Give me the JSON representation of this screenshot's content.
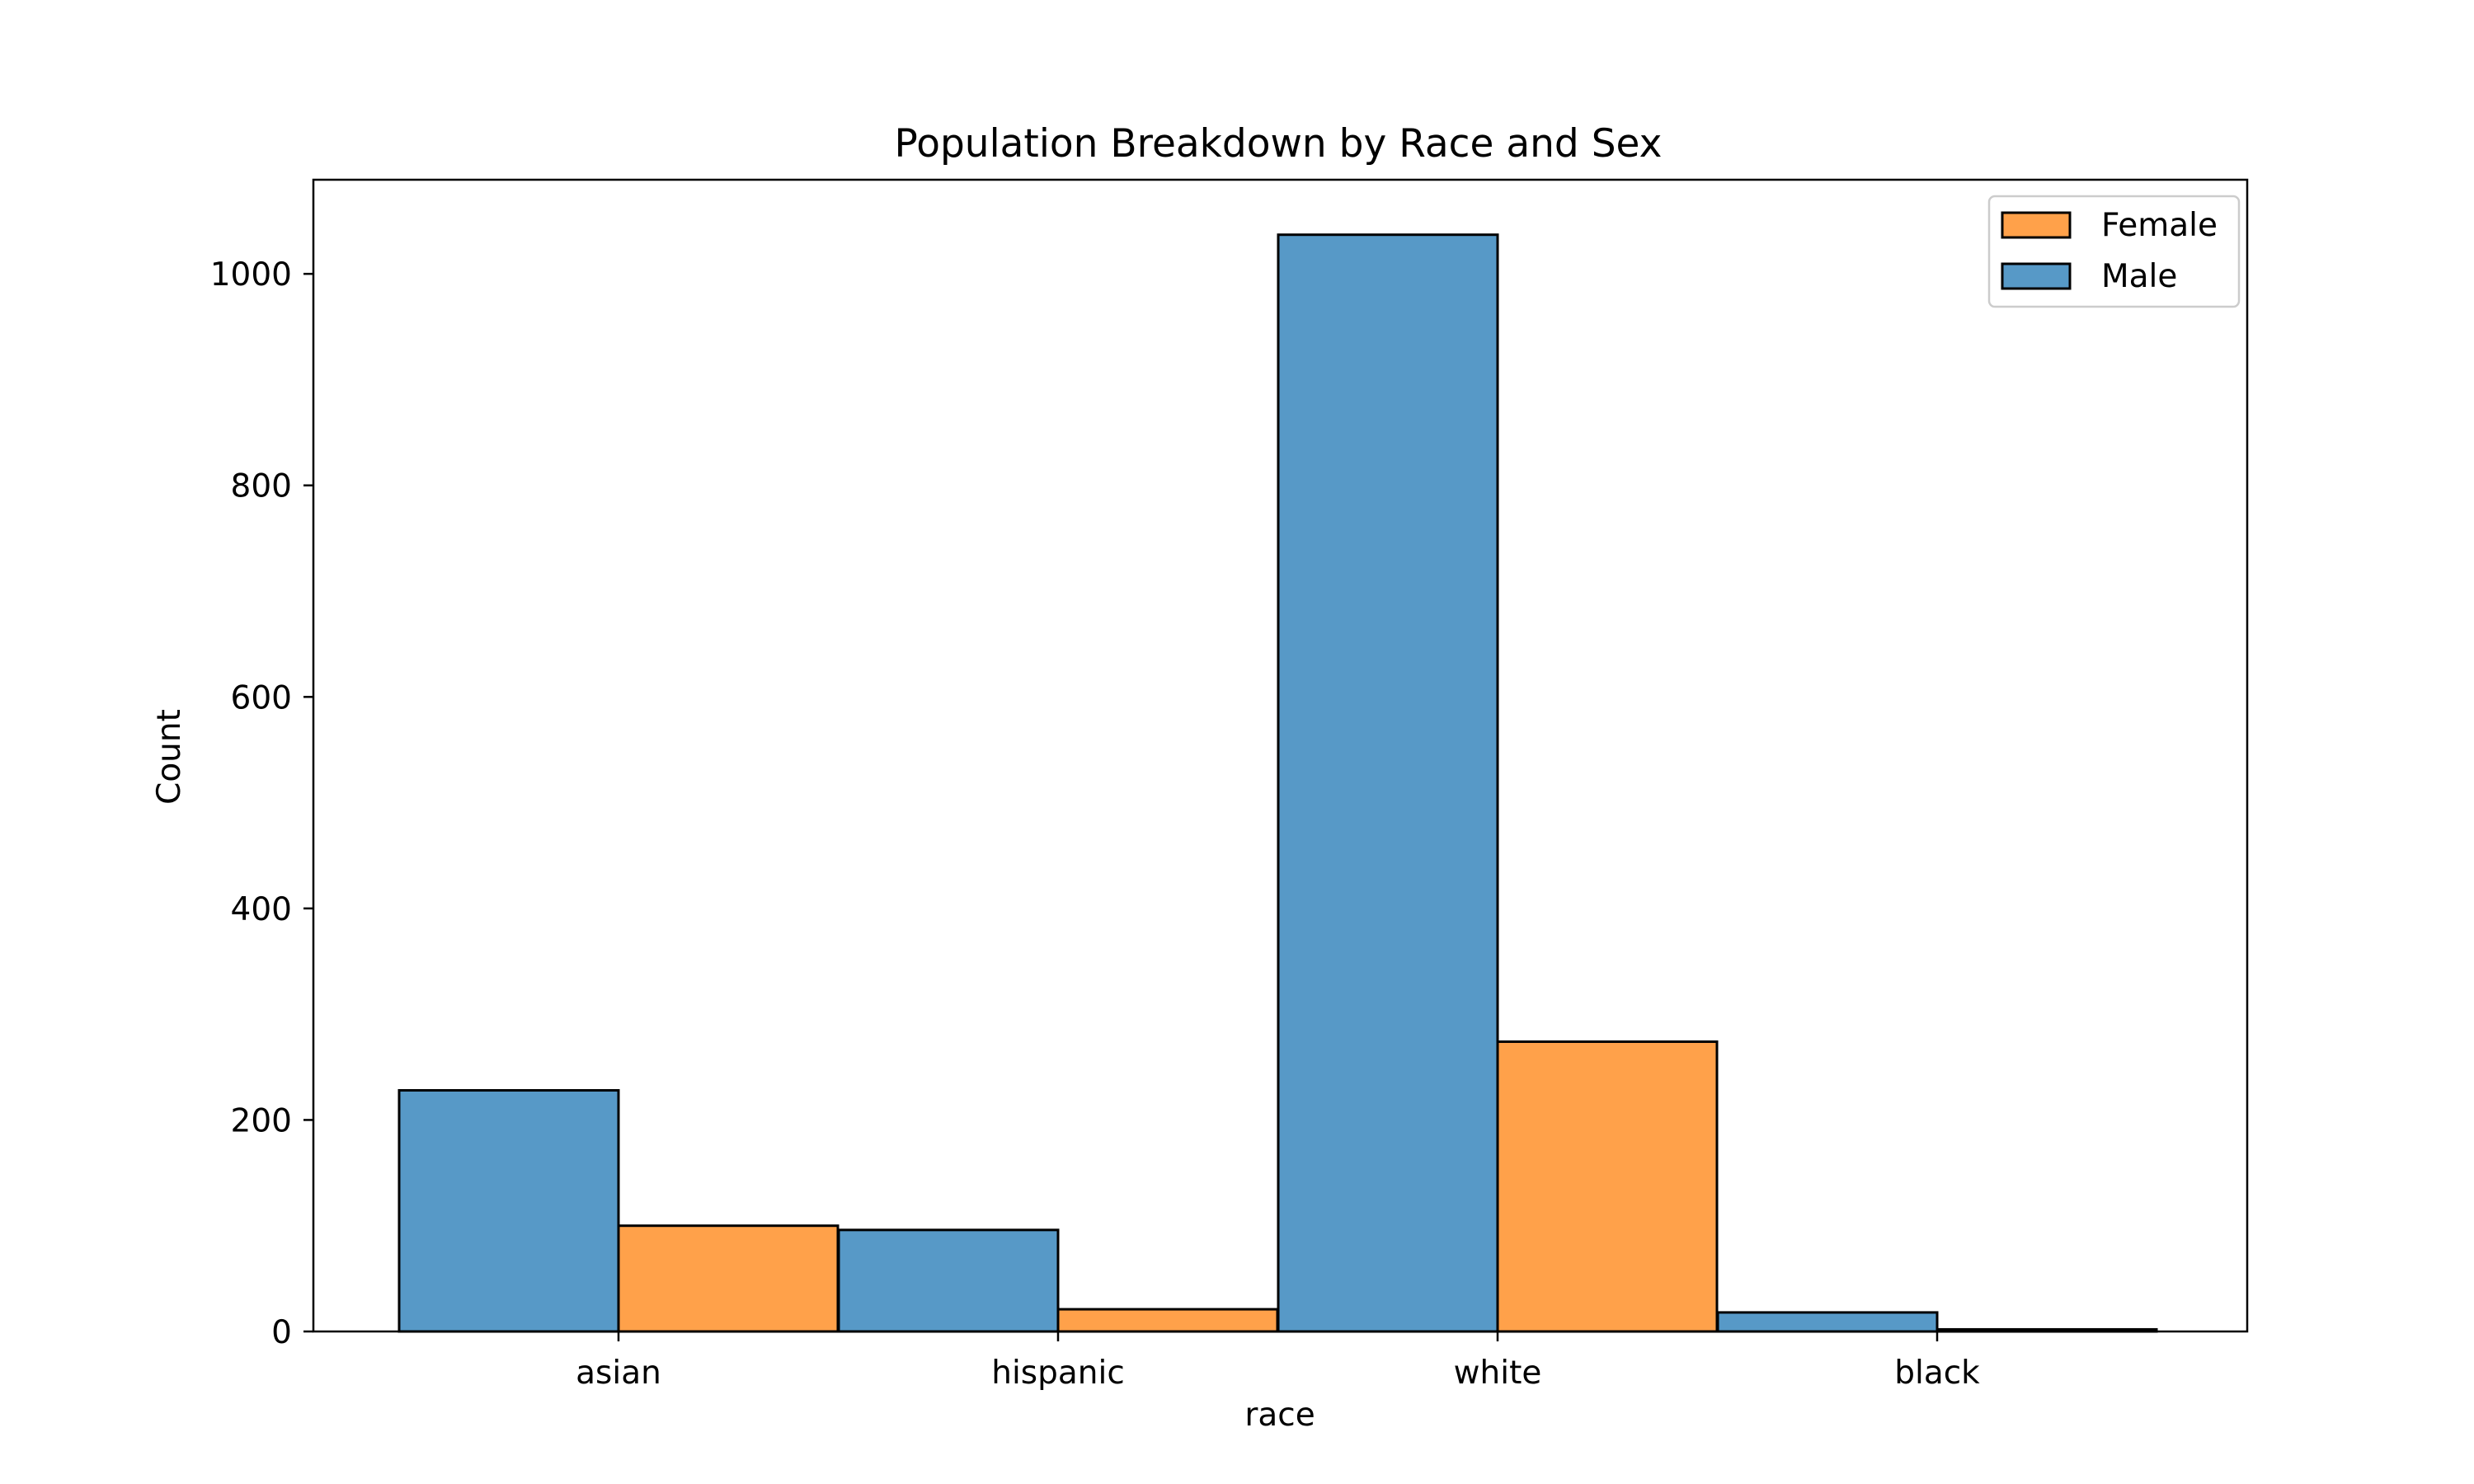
{
  "chart_data": {
    "type": "bar",
    "title": "Population Breakdown by Race and Sex",
    "xlabel": "race",
    "ylabel": "Count",
    "categories": [
      "asian",
      "hispanic",
      "white",
      "black"
    ],
    "series": [
      {
        "name": "Male",
        "values": [
          228,
          96,
          1037,
          18
        ],
        "color": "#5799c7"
      },
      {
        "name": "Female",
        "values": [
          100,
          21,
          274,
          2
        ],
        "color": "#ffa14a"
      }
    ],
    "yticks": [
      0,
      200,
      400,
      600,
      800,
      1000
    ],
    "ylim": [
      0,
      1089
    ],
    "legend": {
      "placement": "top-right",
      "order": [
        "Female",
        "Male"
      ]
    },
    "grid": false,
    "edge_color": "#000000"
  }
}
